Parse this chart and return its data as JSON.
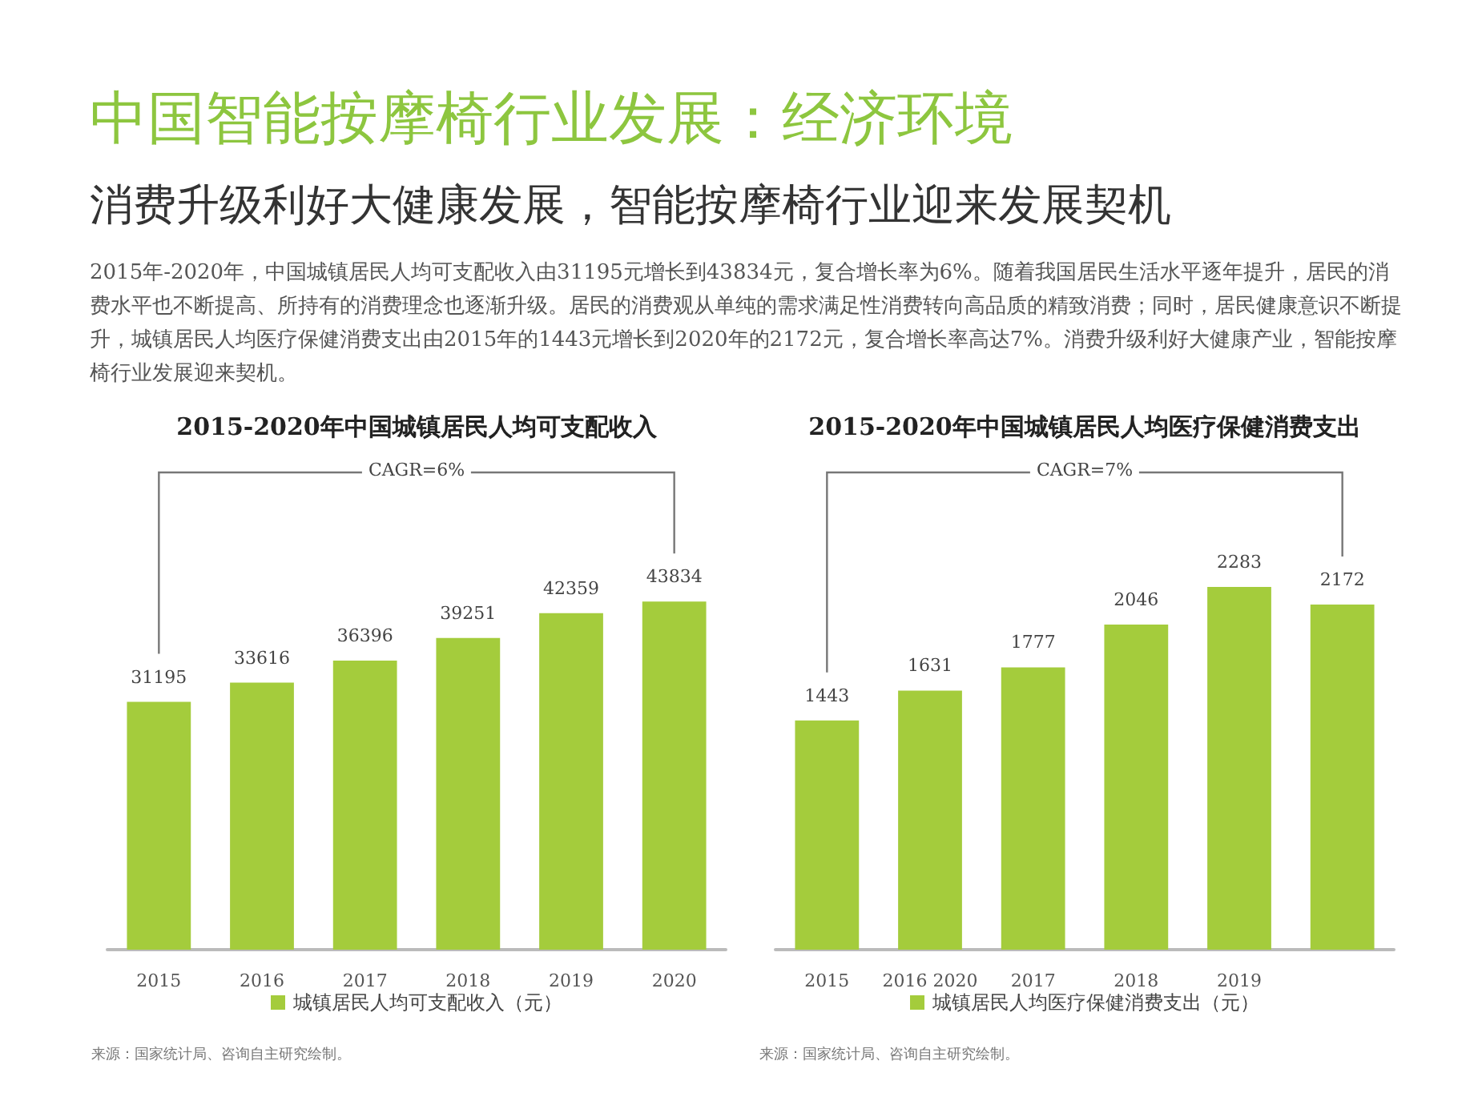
{
  "chart_data": [
    {
      "type": "other",
      "title": "中国智能按摩椅行业发展：经济环境",
      "subtitle": "消费升级利好大健康发展，智能按摩椅行业迎来发展契机",
      "annotations": [
        "2015年-2020年，中国城镇居民人均可支配收入由31195元增长到43834元，复合增长率为6%。随着我国居民生活水平逐年提升，居民的消费水平也不断提高、所持有的消费理念也逐渐升级。居民的消费观从单纯的需求满足性消费转向高品质的精致消费；同时，居民健康意识不断提升，城镇居民人均医疗保健消费支出由2015年的1443元增长到2020年的2172元，复合增长率高达7%。消费升级利好大健康产业，智能按摩椅行业发展迎来契机。"
      ]
    },
    {
      "type": "bar",
      "title": "2015-2020年中国城镇居民人均可支配收入",
      "categories": [
        "2015",
        "2016",
        "2017",
        "2018",
        "2019",
        "2020"
      ],
      "series": [
        {
          "name": "城镇居民人均可支配收入（元）",
          "color": "#a4cc3c",
          "values": [
            31195,
            33616,
            36396,
            39251,
            42359,
            43834
          ]
        }
      ],
      "data_labels": true,
      "legend": "bottom",
      "annotations": [
        "CAGR=6%",
        "来源：国家统计局、咨询自主研究绘制。"
      ]
    },
    {
      "type": "bar",
      "title": "2015-2020年中国城镇居民人均医疗保健消费支出",
      "categories": [
        "2015",
        "2016 2020",
        "2017",
        "2018",
        "2019",
        null
      ],
      "series": [
        {
          "name": "城镇居民人均医疗保健消费支出（元）",
          "color": "#a4cc3c",
          "values": [
            1443,
            1631,
            1777,
            2046,
            2283,
            2172
          ]
        }
      ],
      "data_labels": true,
      "legend": "bottom",
      "annotations": [
        "CAGR=7%",
        "来源：国家统计局、咨询自主研究绘制。"
      ]
    }
  ]
}
